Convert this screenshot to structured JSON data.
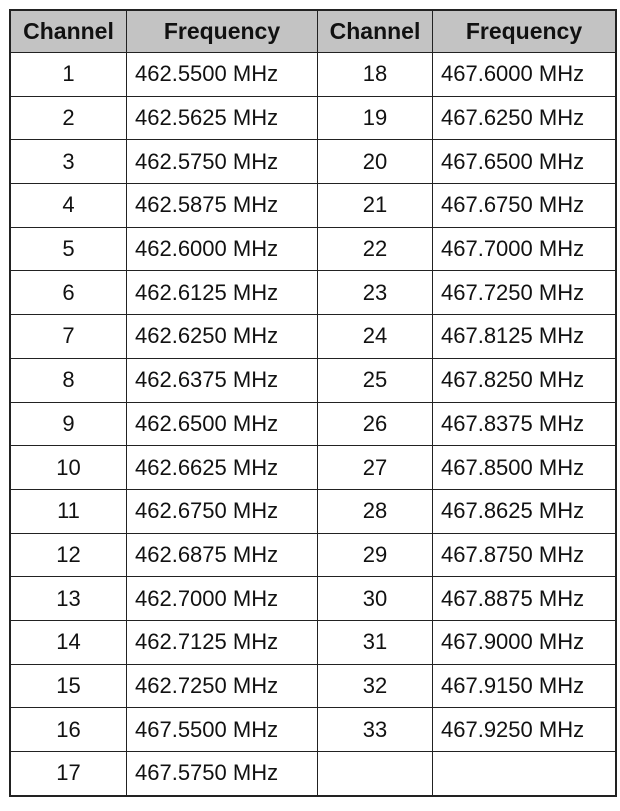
{
  "headers": [
    "Channel",
    "Frequency",
    "Channel",
    "Frequency"
  ],
  "left": [
    {
      "channel": "1",
      "frequency": "462.5500 MHz"
    },
    {
      "channel": "2",
      "frequency": "462.5625 MHz"
    },
    {
      "channel": "3",
      "frequency": "462.5750 MHz"
    },
    {
      "channel": "4",
      "frequency": "462.5875 MHz"
    },
    {
      "channel": "5",
      "frequency": "462.6000 MHz"
    },
    {
      "channel": "6",
      "frequency": "462.6125 MHz"
    },
    {
      "channel": "7",
      "frequency": "462.6250 MHz"
    },
    {
      "channel": "8",
      "frequency": "462.6375 MHz"
    },
    {
      "channel": "9",
      "frequency": "462.6500 MHz"
    },
    {
      "channel": "10",
      "frequency": "462.6625 MHz"
    },
    {
      "channel": "11",
      "frequency": "462.6750 MHz"
    },
    {
      "channel": "12",
      "frequency": "462.6875 MHz"
    },
    {
      "channel": "13",
      "frequency": "462.7000 MHz"
    },
    {
      "channel": "14",
      "frequency": "462.7125 MHz"
    },
    {
      "channel": "15",
      "frequency": "462.7250 MHz"
    },
    {
      "channel": "16",
      "frequency": "467.5500 MHz"
    },
    {
      "channel": "17",
      "frequency": "467.5750 MHz"
    }
  ],
  "right": [
    {
      "channel": "18",
      "frequency": "467.6000 MHz"
    },
    {
      "channel": "19",
      "frequency": "467.6250 MHz"
    },
    {
      "channel": "20",
      "frequency": "467.6500 MHz"
    },
    {
      "channel": "21",
      "frequency": "467.6750 MHz"
    },
    {
      "channel": "22",
      "frequency": "467.7000 MHz"
    },
    {
      "channel": "23",
      "frequency": "467.7250 MHz"
    },
    {
      "channel": "24",
      "frequency": "467.8125 MHz"
    },
    {
      "channel": "25",
      "frequency": "467.8250 MHz"
    },
    {
      "channel": "26",
      "frequency": "467.8375 MHz"
    },
    {
      "channel": "27",
      "frequency": "467.8500 MHz"
    },
    {
      "channel": "28",
      "frequency": "467.8625 MHz"
    },
    {
      "channel": "29",
      "frequency": "467.8750 MHz"
    },
    {
      "channel": "30",
      "frequency": "467.8875 MHz"
    },
    {
      "channel": "31",
      "frequency": "467.9000 MHz"
    },
    {
      "channel": "32",
      "frequency": "467.9150 MHz"
    },
    {
      "channel": "33",
      "frequency": "467.9250 MHz"
    }
  ],
  "colors": {
    "header_bg": "#c3c3c3",
    "border": "#222222"
  }
}
